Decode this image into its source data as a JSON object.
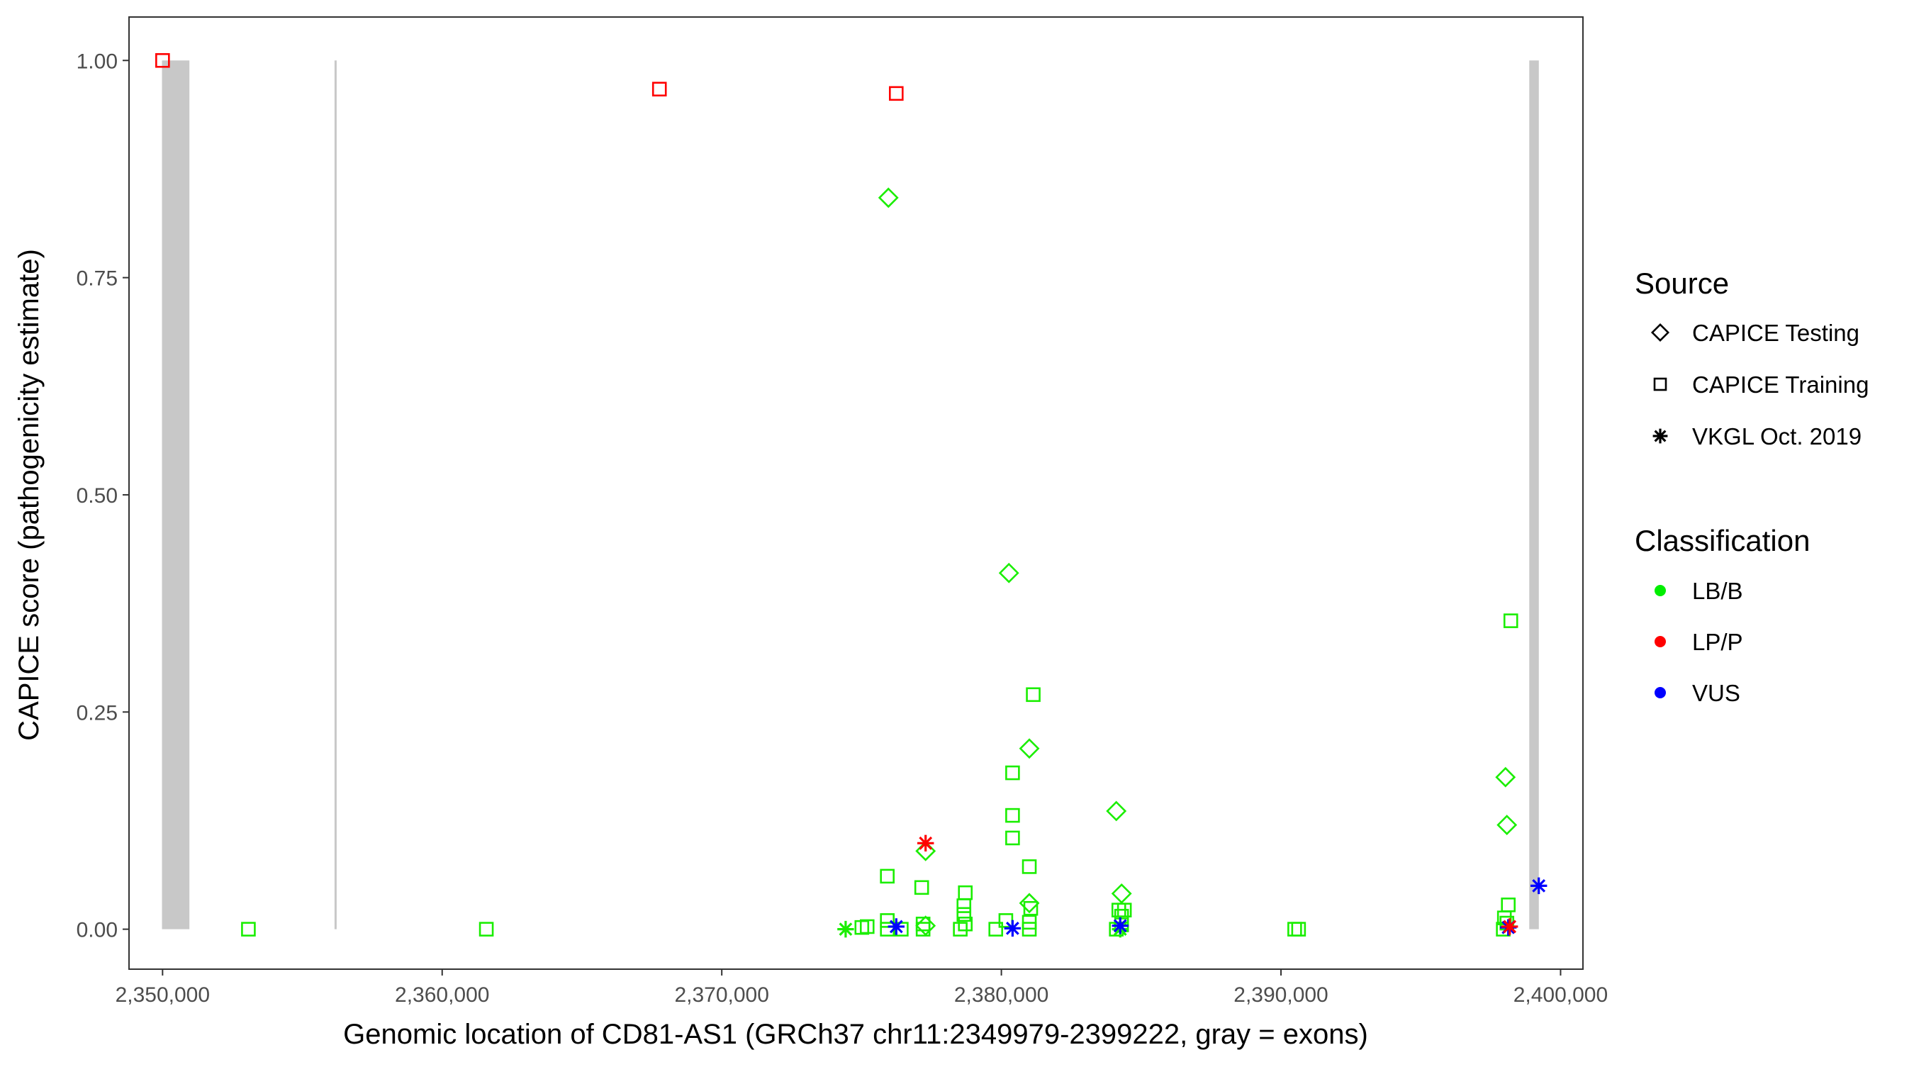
{
  "chart_data": {
    "type": "scatter",
    "xlabel": "Genomic location of CD81-AS1 (GRCh37 chr11:2349979-2399222, gray = exons)",
    "ylabel": "CAPICE score (pathogenicity estimate)",
    "xlim": [
      2348800,
      2400800
    ],
    "ylim": [
      -0.046,
      1.05
    ],
    "x_ticks": [
      2350000,
      2360000,
      2370000,
      2380000,
      2390000,
      2400000
    ],
    "x_tick_labels": [
      "2,350,000",
      "2,360,000",
      "2,370,000",
      "2,380,000",
      "2,390,000",
      "2,400,000"
    ],
    "y_ticks": [
      0,
      0.25,
      0.5,
      0.75,
      1.0
    ],
    "y_tick_labels": [
      "0.00",
      "0.25",
      "0.50",
      "0.75",
      "1.00"
    ],
    "grid": false,
    "exons": [
      [
        2349979,
        2350960
      ],
      [
        2356150,
        2356210
      ],
      [
        2398880,
        2399222
      ]
    ],
    "legend": {
      "placement": "right",
      "source_title": "Source",
      "source_items": [
        {
          "label": "CAPICE Testing",
          "shape": "diamond"
        },
        {
          "label": "CAPICE Training",
          "shape": "square"
        },
        {
          "label": "VKGL Oct. 2019",
          "shape": "star"
        }
      ],
      "class_title": "Classification",
      "class_items": [
        {
          "label": "LB/B",
          "color": "#00ee00"
        },
        {
          "label": "LP/P",
          "color": "#ff0000"
        },
        {
          "label": "VUS",
          "color": "#0000ff"
        }
      ]
    },
    "colors": {
      "LB/B": "#1aee00",
      "LP/P": "#ff0000",
      "VUS": "#0000ff",
      "exon": "#c8c8c8"
    },
    "points": [
      {
        "x": 2350000,
        "y": 1.0,
        "source": "square",
        "cls": "LP/P"
      },
      {
        "x": 2367770,
        "y": 0.967,
        "source": "square",
        "cls": "LP/P"
      },
      {
        "x": 2376240,
        "y": 0.962,
        "source": "square",
        "cls": "LP/P"
      },
      {
        "x": 2375960,
        "y": 0.842,
        "source": "diamond",
        "cls": "LB/B"
      },
      {
        "x": 2380270,
        "y": 0.41,
        "source": "diamond",
        "cls": "LB/B"
      },
      {
        "x": 2381000,
        "y": 0.208,
        "source": "diamond",
        "cls": "LB/B"
      },
      {
        "x": 2384110,
        "y": 0.136,
        "source": "diamond",
        "cls": "LB/B"
      },
      {
        "x": 2398030,
        "y": 0.175,
        "source": "diamond",
        "cls": "LB/B"
      },
      {
        "x": 2398080,
        "y": 0.12,
        "source": "diamond",
        "cls": "LB/B"
      },
      {
        "x": 2384300,
        "y": 0.041,
        "source": "diamond",
        "cls": "LB/B"
      },
      {
        "x": 2377290,
        "y": 0.09,
        "source": "diamond",
        "cls": "LB/B"
      },
      {
        "x": 2381000,
        "y": 0.03,
        "source": "diamond",
        "cls": "LB/B"
      },
      {
        "x": 2377290,
        "y": 0.004,
        "source": "diamond",
        "cls": "LB/B"
      },
      {
        "x": 2353070,
        "y": 0.0,
        "source": "square",
        "cls": "LB/B"
      },
      {
        "x": 2361580,
        "y": 0.0,
        "source": "square",
        "cls": "LB/B"
      },
      {
        "x": 2398220,
        "y": 0.355,
        "source": "square",
        "cls": "LB/B"
      },
      {
        "x": 2381140,
        "y": 0.27,
        "source": "square",
        "cls": "LB/B"
      },
      {
        "x": 2380400,
        "y": 0.18,
        "source": "square",
        "cls": "LB/B"
      },
      {
        "x": 2380400,
        "y": 0.131,
        "source": "square",
        "cls": "LB/B"
      },
      {
        "x": 2380400,
        "y": 0.105,
        "source": "square",
        "cls": "LB/B"
      },
      {
        "x": 2381000,
        "y": 0.072,
        "source": "square",
        "cls": "LB/B"
      },
      {
        "x": 2375920,
        "y": 0.061,
        "source": "square",
        "cls": "LB/B"
      },
      {
        "x": 2377150,
        "y": 0.048,
        "source": "square",
        "cls": "LB/B"
      },
      {
        "x": 2378710,
        "y": 0.042,
        "source": "square",
        "cls": "LB/B"
      },
      {
        "x": 2398130,
        "y": 0.028,
        "source": "square",
        "cls": "LB/B"
      },
      {
        "x": 2378660,
        "y": 0.027,
        "source": "square",
        "cls": "LB/B"
      },
      {
        "x": 2378660,
        "y": 0.017,
        "source": "square",
        "cls": "LB/B"
      },
      {
        "x": 2381050,
        "y": 0.024,
        "source": "square",
        "cls": "LB/B"
      },
      {
        "x": 2384200,
        "y": 0.022,
        "source": "square",
        "cls": "LB/B"
      },
      {
        "x": 2384400,
        "y": 0.022,
        "source": "square",
        "cls": "LB/B"
      },
      {
        "x": 2375010,
        "y": 0.002,
        "source": "square",
        "cls": "LB/B"
      },
      {
        "x": 2375200,
        "y": 0.003,
        "source": "square",
        "cls": "LB/B"
      },
      {
        "x": 2375920,
        "y": 0.01,
        "source": "square",
        "cls": "LB/B"
      },
      {
        "x": 2375920,
        "y": 0.0,
        "source": "square",
        "cls": "LB/B"
      },
      {
        "x": 2376420,
        "y": 0.0,
        "source": "square",
        "cls": "LB/B"
      },
      {
        "x": 2377200,
        "y": 0.0,
        "source": "square",
        "cls": "LB/B"
      },
      {
        "x": 2377200,
        "y": 0.006,
        "source": "square",
        "cls": "LB/B"
      },
      {
        "x": 2378530,
        "y": 0.0,
        "source": "square",
        "cls": "LB/B"
      },
      {
        "x": 2378710,
        "y": 0.006,
        "source": "square",
        "cls": "LB/B"
      },
      {
        "x": 2379800,
        "y": 0.0,
        "source": "square",
        "cls": "LB/B"
      },
      {
        "x": 2380160,
        "y": 0.01,
        "source": "square",
        "cls": "LB/B"
      },
      {
        "x": 2381000,
        "y": 0.0,
        "source": "square",
        "cls": "LB/B"
      },
      {
        "x": 2381000,
        "y": 0.008,
        "source": "square",
        "cls": "LB/B"
      },
      {
        "x": 2384110,
        "y": 0.0,
        "source": "square",
        "cls": "LB/B"
      },
      {
        "x": 2384300,
        "y": 0.005,
        "source": "square",
        "cls": "LB/B"
      },
      {
        "x": 2384300,
        "y": 0.015,
        "source": "square",
        "cls": "LB/B"
      },
      {
        "x": 2390490,
        "y": 0.0,
        "source": "square",
        "cls": "LB/B"
      },
      {
        "x": 2390630,
        "y": 0.0,
        "source": "square",
        "cls": "LB/B"
      },
      {
        "x": 2397950,
        "y": 0.0,
        "source": "square",
        "cls": "LB/B"
      },
      {
        "x": 2397990,
        "y": 0.013,
        "source": "square",
        "cls": "LB/B"
      },
      {
        "x": 2398080,
        "y": 0.007,
        "source": "square",
        "cls": "LB/B"
      },
      {
        "x": 2374430,
        "y": 0.0,
        "source": "star",
        "cls": "LB/B"
      },
      {
        "x": 2384250,
        "y": 0.0,
        "source": "star",
        "cls": "LB/B"
      },
      {
        "x": 2376240,
        "y": 0.003,
        "source": "star",
        "cls": "VUS"
      },
      {
        "x": 2377290,
        "y": 0.099,
        "source": "star",
        "cls": "LP/P"
      },
      {
        "x": 2380400,
        "y": 0.001,
        "source": "star",
        "cls": "VUS"
      },
      {
        "x": 2384250,
        "y": 0.004,
        "source": "star",
        "cls": "VUS"
      },
      {
        "x": 2398130,
        "y": 0.002,
        "source": "star",
        "cls": "VUS"
      },
      {
        "x": 2398180,
        "y": 0.003,
        "source": "star",
        "cls": "LP/P"
      },
      {
        "x": 2399220,
        "y": 0.05,
        "source": "star",
        "cls": "VUS"
      }
    ]
  }
}
